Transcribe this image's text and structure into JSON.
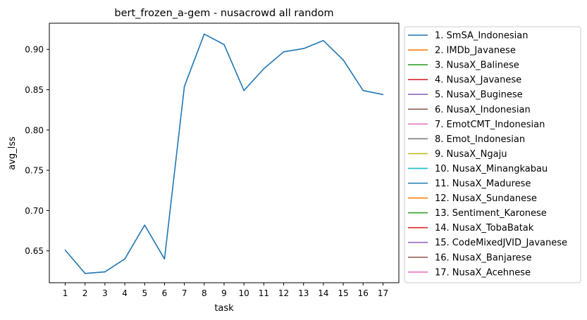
{
  "chart_data": {
    "type": "line",
    "title": "bert_frozen_a-gem - nusacrowd all random",
    "xlabel": "task",
    "ylabel": "avg_lss",
    "x": [
      1,
      2,
      3,
      4,
      5,
      6,
      7,
      8,
      9,
      10,
      11,
      12,
      13,
      14,
      15,
      16,
      17
    ],
    "x_tick_labels": [
      "1",
      "2",
      "3",
      "4",
      "5",
      "6",
      "7",
      "8",
      "9",
      "10",
      "11",
      "12",
      "13",
      "14",
      "15",
      "16",
      "17"
    ],
    "y_ticks": [
      0.65,
      0.7,
      0.75,
      0.8,
      0.85,
      0.9
    ],
    "y_tick_labels": [
      "0.65",
      "0.70",
      "0.75",
      "0.80",
      "0.85",
      "0.90"
    ],
    "xlim": [
      0.2,
      17.8
    ],
    "ylim": [
      0.6105,
      0.9325
    ],
    "grid": false,
    "legend_position": "outside-right",
    "series": [
      {
        "name": "1. SmSA_Indonesian",
        "color": "#1f77b4",
        "values": [
          0.651,
          0.622,
          0.624,
          0.64,
          0.682,
          0.64,
          0.854,
          0.919,
          0.906,
          0.849,
          0.876,
          0.897,
          0.901,
          0.911,
          0.887,
          0.849,
          0.844
        ]
      }
    ],
    "legend": [
      {
        "label": "1. SmSA_Indonesian",
        "color": "#1f77b4"
      },
      {
        "label": "2. IMDb_Javanese",
        "color": "#ff7f0e"
      },
      {
        "label": "3. NusaX_Balinese",
        "color": "#2ca02c"
      },
      {
        "label": "4. NusaX_Javanese",
        "color": "#d62728"
      },
      {
        "label": "5. NusaX_Buginese",
        "color": "#9467bd"
      },
      {
        "label": "6. NusaX_Indonesian",
        "color": "#8c564b"
      },
      {
        "label": "7. EmotCMT_Indonesian",
        "color": "#e377c2"
      },
      {
        "label": "8. Emot_Indonesian",
        "color": "#7f7f7f"
      },
      {
        "label": "9. NusaX_Ngaju",
        "color": "#bcbd22"
      },
      {
        "label": "10. NusaX_Minangkabau",
        "color": "#17becf"
      },
      {
        "label": "11. NusaX_Madurese",
        "color": "#1f77b4"
      },
      {
        "label": "12. NusaX_Sundanese",
        "color": "#ff7f0e"
      },
      {
        "label": "13. Sentiment_Karonese",
        "color": "#2ca02c"
      },
      {
        "label": "14. NusaX_TobaBatak",
        "color": "#d62728"
      },
      {
        "label": "15. CodeMixedJVID_Javanese",
        "color": "#9467bd"
      },
      {
        "label": "16. NusaX_Banjarese",
        "color": "#8c564b"
      },
      {
        "label": "17. NusaX_Acehnese",
        "color": "#e377c2"
      }
    ]
  }
}
